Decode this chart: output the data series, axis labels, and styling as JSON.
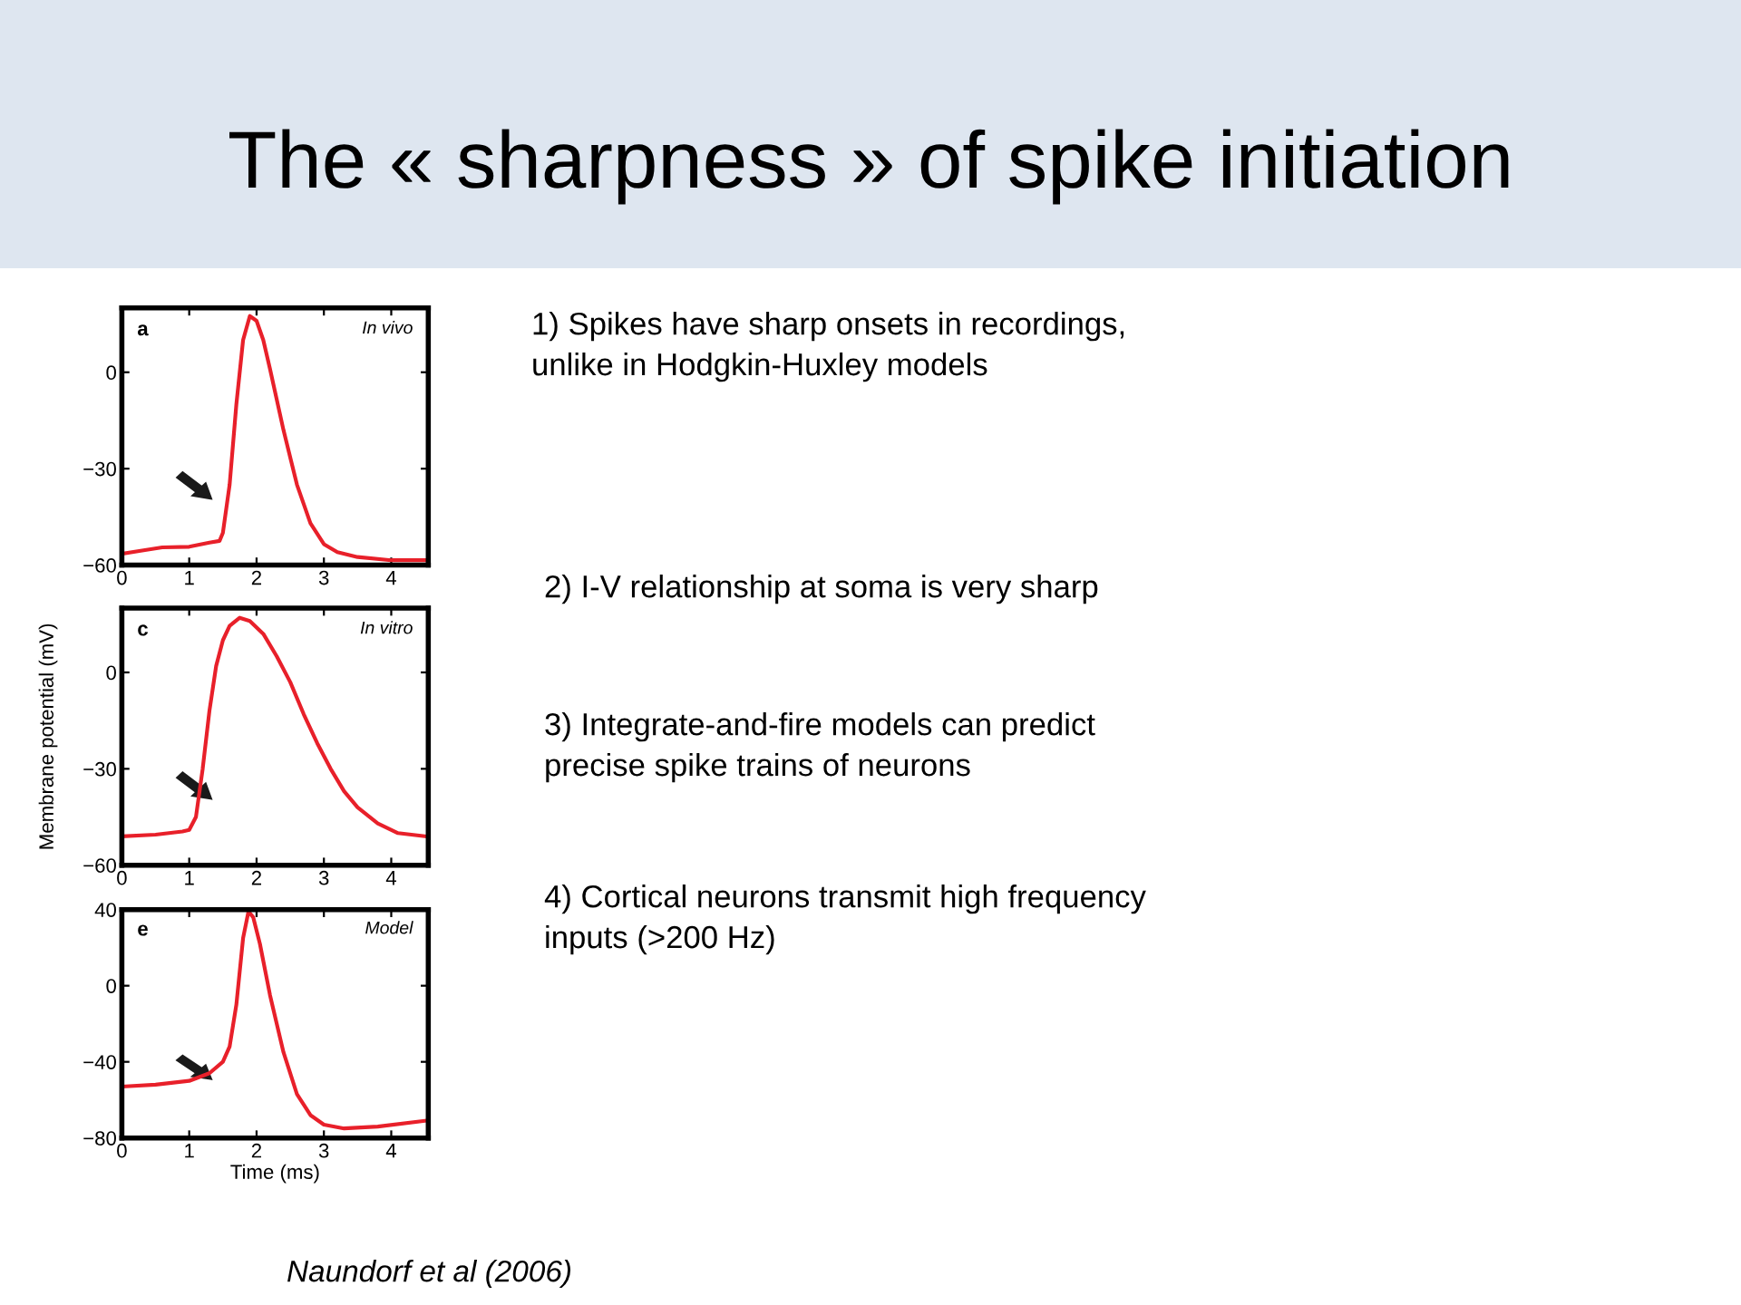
{
  "chart_data": [
    {
      "type": "line",
      "title": "The « sharpness » of spike initiation",
      "annotations": [
        "a",
        "In vivo"
      ],
      "xlim": [
        0,
        4.55
      ],
      "ylim": [
        -60,
        20
      ],
      "xticks": [
        0,
        1,
        2,
        3,
        4
      ],
      "yticks": [
        {
          "value": -60,
          "label": "−60"
        },
        {
          "value": -30,
          "label": "−30"
        },
        0
      ],
      "grid": false,
      "series": [
        {
          "color": "#e8202a",
          "x": [
            0,
            0.3,
            0.6,
            1,
            1.3,
            1.45,
            1.5,
            1.6,
            1.7,
            1.8,
            1.9,
            2.0,
            2.1,
            2.2,
            2.4,
            2.6,
            2.8,
            3.0,
            3.2,
            3.5,
            4,
            4.5
          ],
          "values": [
            -56.5,
            -55.5,
            -54.5,
            -54.3,
            -53,
            -52.5,
            -50,
            -35,
            -10,
            10,
            17.5,
            16,
            10,
            1,
            -18,
            -35,
            -47,
            -53.5,
            -56,
            -57.5,
            -58.5,
            -58.5
          ]
        }
      ]
    },
    {
      "type": "line",
      "ylabel": "Membrane potential (mV)",
      "annotations": [
        "c",
        "In vitro"
      ],
      "xlim": [
        0,
        4.55
      ],
      "ylim": [
        -60,
        20
      ],
      "xticks": [
        0,
        1,
        2,
        3,
        4
      ],
      "yticks": [
        {
          "value": -60,
          "label": "−60"
        },
        {
          "value": -30,
          "label": "−30"
        },
        0
      ],
      "grid": false,
      "series": [
        {
          "color": "#e8202a",
          "x": [
            0,
            0.5,
            0.9,
            1.0,
            1.1,
            1.2,
            1.3,
            1.4,
            1.5,
            1.6,
            1.75,
            1.9,
            2.1,
            2.3,
            2.5,
            2.7,
            2.9,
            3.1,
            3.3,
            3.5,
            3.8,
            4.1,
            4.5
          ],
          "values": [
            -51,
            -50.5,
            -49.5,
            -49,
            -45,
            -30,
            -12,
            2,
            10,
            14.5,
            17,
            16,
            12,
            5,
            -3,
            -13,
            -22,
            -30,
            -37,
            -42,
            -47,
            -50,
            -51
          ]
        }
      ]
    },
    {
      "type": "line",
      "xlabel": "Time (ms)",
      "annotations": [
        "e",
        "Model"
      ],
      "xlim": [
        0,
        4.55
      ],
      "ylim": [
        -80,
        40
      ],
      "xticks": [
        0,
        1,
        2,
        3,
        4
      ],
      "yticks": [
        {
          "value": -80,
          "label": "−80"
        },
        {
          "value": -40,
          "label": "−40"
        },
        0,
        40
      ],
      "grid": false,
      "series": [
        {
          "color": "#e8202a",
          "x": [
            0,
            0.5,
            1,
            1.3,
            1.5,
            1.6,
            1.7,
            1.8,
            1.88,
            1.95,
            2.05,
            2.2,
            2.4,
            2.6,
            2.8,
            3.0,
            3.3,
            3.8,
            4.5
          ],
          "values": [
            -53,
            -52,
            -50,
            -46,
            -40,
            -32,
            -10,
            25,
            39,
            36,
            22,
            -5,
            -35,
            -57,
            -68,
            -73,
            -75,
            -74,
            -71
          ]
        }
      ]
    },
    {
      "type": "other",
      "annotations": [
        "1) Spikes have sharp onsets in recordings,\nunlike in Hodgkin-Huxley models",
        "2) I-V relationship at soma is very sharp",
        "3) Integrate-and-fire models can predict\nprecise spike trains of neurons",
        "4) Cortical neurons transmit high frequency\ninputs (>200 Hz)",
        "Naundorf et al (2006)"
      ]
    }
  ]
}
